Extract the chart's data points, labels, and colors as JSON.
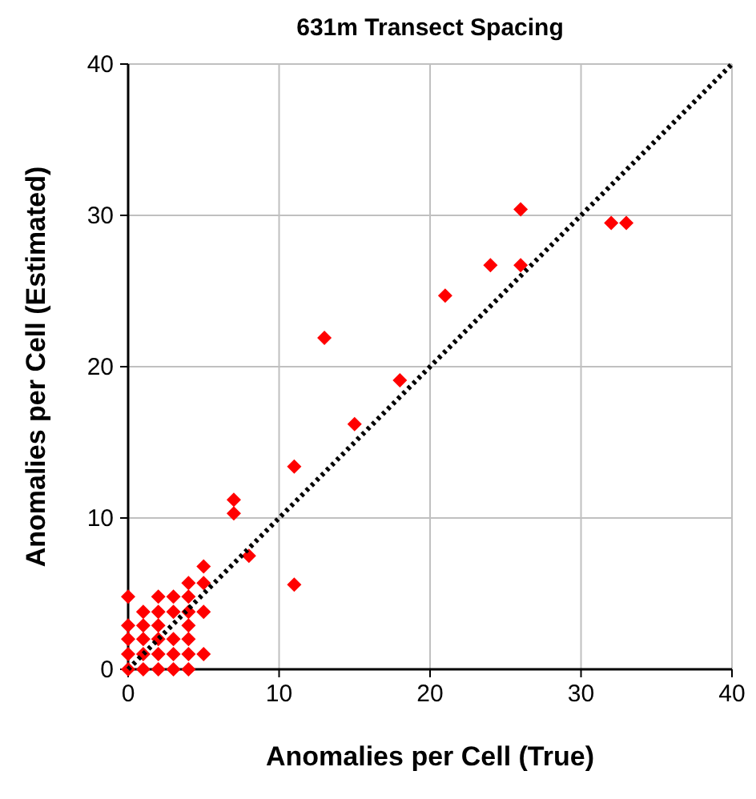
{
  "chart_data": {
    "type": "scatter",
    "title": "631m Transect Spacing",
    "xlabel": "Anomalies per Cell (True)",
    "ylabel": "Anomalies per Cell (Estimated)",
    "xlim": [
      0,
      40
    ],
    "ylim": [
      0,
      40
    ],
    "xticks": [
      0,
      10,
      20,
      30,
      40
    ],
    "yticks": [
      0,
      10,
      20,
      30,
      40
    ],
    "grid": true,
    "marker": "diamond",
    "series": [
      {
        "color": "#ff0000",
        "x": [
          0,
          1,
          2,
          3,
          4,
          0,
          1,
          2,
          3,
          4,
          5,
          0,
          1,
          2,
          3,
          4,
          0,
          1,
          2,
          4,
          1,
          2,
          3,
          4,
          5,
          0,
          2,
          3,
          4,
          4,
          5,
          5,
          7,
          7,
          8,
          11,
          11,
          13,
          15,
          18,
          21,
          24,
          26,
          26,
          32,
          33
        ],
        "values": [
          0,
          0,
          0,
          0,
          0,
          1,
          1,
          1,
          1,
          1,
          1,
          2,
          2,
          2,
          2,
          2,
          2.9,
          2.9,
          2.9,
          2.9,
          3.8,
          3.8,
          3.8,
          3.8,
          3.8,
          4.8,
          4.8,
          4.8,
          4.8,
          5.7,
          5.7,
          6.8,
          10.3,
          11.2,
          7.5,
          5.6,
          13.4,
          21.9,
          16.2,
          19.1,
          24.7,
          26.7,
          30.4,
          26.7,
          29.5,
          29.5
        ]
      },
      {
        "type": "line",
        "color": "#000000",
        "line_style": "dotted",
        "marker": "none",
        "x": [
          0,
          40
        ],
        "values": [
          0,
          40
        ]
      }
    ]
  }
}
